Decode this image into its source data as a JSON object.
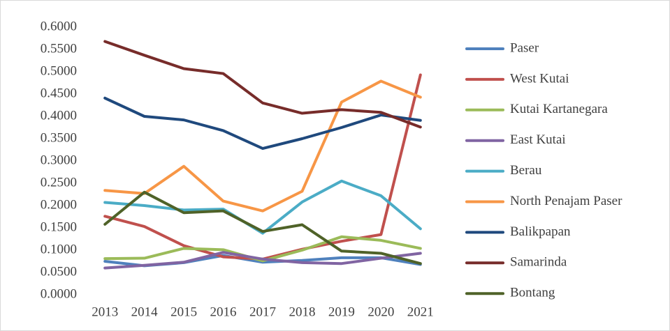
{
  "chart_data": {
    "type": "line",
    "categories": [
      "2013",
      "2014",
      "2015",
      "2016",
      "2017",
      "2018",
      "2019",
      "2020",
      "2021"
    ],
    "series": [
      {
        "name": "Paser",
        "color": "#4f81bd",
        "values": [
          0.075,
          0.065,
          0.072,
          0.088,
          0.073,
          0.077,
          0.083,
          0.083,
          0.068
        ]
      },
      {
        "name": "West Kutai",
        "color": "#c0504d",
        "values": [
          0.176,
          0.153,
          0.11,
          0.085,
          0.08,
          0.102,
          0.12,
          0.135,
          0.493
        ]
      },
      {
        "name": "Kutai Kartanegara",
        "color": "#9bbb59",
        "values": [
          0.081,
          0.082,
          0.104,
          0.101,
          0.076,
          0.1,
          0.13,
          0.122,
          0.104
        ]
      },
      {
        "name": "East Kutai",
        "color": "#8064a2",
        "values": [
          0.06,
          0.066,
          0.073,
          0.095,
          0.08,
          0.072,
          0.07,
          0.082,
          0.093
        ]
      },
      {
        "name": "Berau",
        "color": "#4bacc6",
        "values": [
          0.207,
          0.2,
          0.19,
          0.192,
          0.138,
          0.208,
          0.255,
          0.222,
          0.148
        ]
      },
      {
        "name": "North Penajam Paser",
        "color": "#f79646",
        "values": [
          0.234,
          0.227,
          0.288,
          0.21,
          0.188,
          0.232,
          0.432,
          0.479,
          0.443
        ]
      },
      {
        "name": "Balikpapan",
        "color": "#1f497d",
        "values": [
          0.441,
          0.4,
          0.392,
          0.368,
          0.328,
          0.35,
          0.375,
          0.403,
          0.391
        ]
      },
      {
        "name": "Samarinda",
        "color": "#772c2a",
        "values": [
          0.568,
          0.537,
          0.507,
          0.496,
          0.43,
          0.407,
          0.415,
          0.409,
          0.376
        ]
      },
      {
        "name": "Bontang",
        "color": "#4f6228",
        "values": [
          0.158,
          0.23,
          0.184,
          0.188,
          0.142,
          0.157,
          0.098,
          0.093,
          0.07
        ]
      }
    ],
    "ylim": [
      0,
      0.6
    ],
    "yticks": [
      {
        "value": 0,
        "label": "0.0000"
      },
      {
        "value": 0.05,
        "label": "0.0500"
      },
      {
        "value": 0.1,
        "label": "0.1000"
      },
      {
        "value": 0.15,
        "label": "0.1500"
      },
      {
        "value": 0.2,
        "label": "0.2000"
      },
      {
        "value": 0.25,
        "label": "0.2500"
      },
      {
        "value": 0.3,
        "label": "0.3000"
      },
      {
        "value": 0.35,
        "label": "0.3500"
      },
      {
        "value": 0.4,
        "label": "0.4000"
      },
      {
        "value": 0.45,
        "label": "0.4500"
      },
      {
        "value": 0.5,
        "label": "0.5000"
      },
      {
        "value": 0.55,
        "label": "0.5500"
      },
      {
        "value": 0.6,
        "label": "0.6000"
      }
    ],
    "grid": false,
    "legend": "right"
  }
}
